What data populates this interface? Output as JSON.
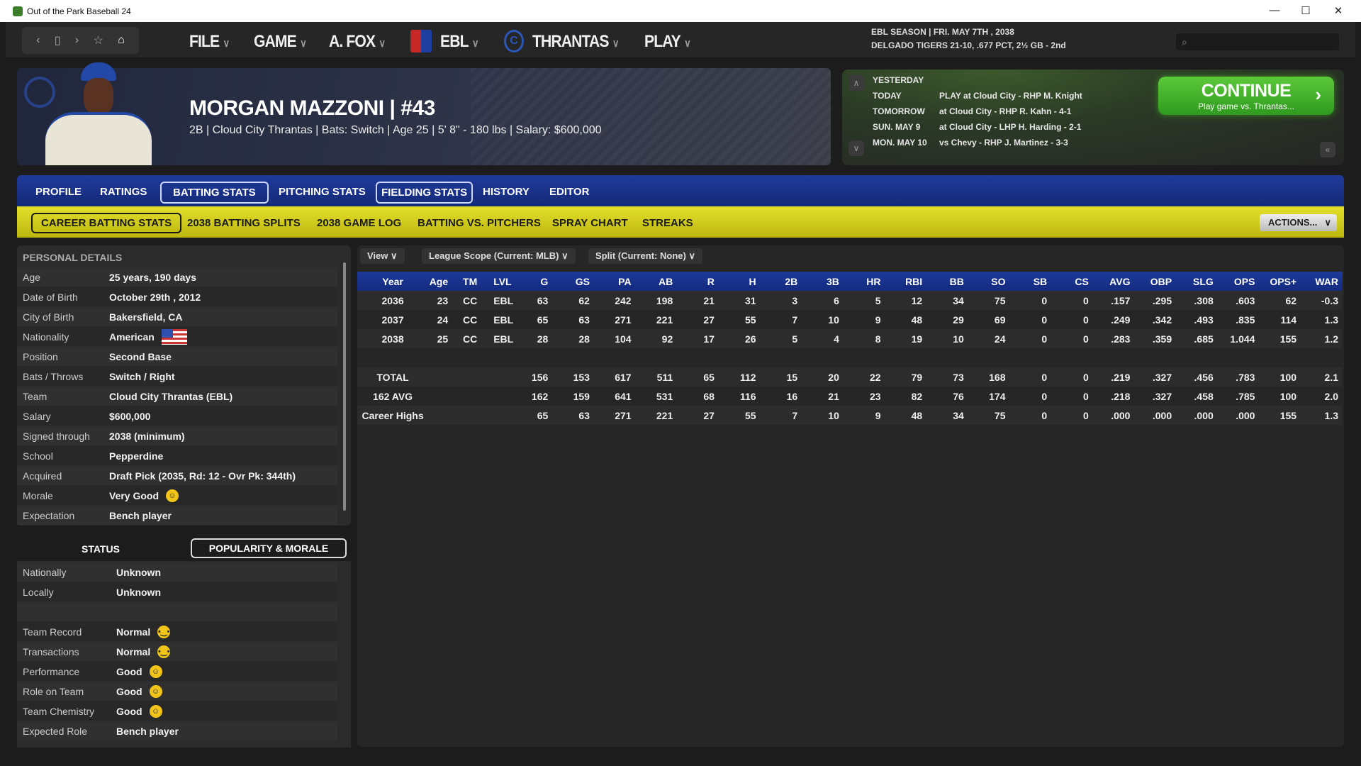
{
  "window": {
    "title": "Out of the Park Baseball 24"
  },
  "menu": {
    "file": "FILE",
    "game": "GAME",
    "manager": "A. FOX",
    "league": "EBL",
    "team": "THRANTAS",
    "play": "PLAY"
  },
  "season": {
    "line1": "EBL SEASON  |  FRI. MAY 7TH , 2038",
    "line2": "DELGADO TIGERS  21-10, .677 PCT, 2½ GB - 2nd"
  },
  "player": {
    "name": "MORGAN MAZZONI  |  #43",
    "subtitle": "2B  |  Cloud City Thrantas  |  Bats: Switch  |  Age 25  |  5' 8\" - 180 lbs  |  Salary: $600,000"
  },
  "schedule": [
    {
      "day": "YESTERDAY",
      "game": ""
    },
    {
      "day": "TODAY",
      "game": "PLAY at Cloud City - RHP M. Knight"
    },
    {
      "day": "TOMORROW",
      "game": "at Cloud City - RHP R. Kahn - 4-1"
    },
    {
      "day": "SUN. MAY 9",
      "game": "at Cloud City - LHP H. Harding - 2-1"
    },
    {
      "day": "MON. MAY 10",
      "game": "vs Chevy - RHP J. Martinez - 3-3"
    }
  ],
  "continue": {
    "label": "CONTINUE",
    "sub": "Play game vs. Thrantas..."
  },
  "tabs": [
    "PROFILE",
    "RATINGS",
    "BATTING STATS",
    "PITCHING STATS",
    "FIELDING STATS",
    "HISTORY",
    "EDITOR"
  ],
  "subtabs": [
    "CAREER BATTING STATS",
    "2038 BATTING SPLITS",
    "2038 GAME LOG",
    "BATTING VS. PITCHERS",
    "SPRAY CHART",
    "STREAKS"
  ],
  "actions_label": "ACTIONS...",
  "personal": {
    "title": "PERSONAL DETAILS",
    "rows": [
      {
        "k": "Age",
        "v": "25 years, 190 days"
      },
      {
        "k": "Date of Birth",
        "v": "October 29th , 2012"
      },
      {
        "k": "City of Birth",
        "v": "Bakersfield, CA"
      },
      {
        "k": "Nationality",
        "v": "American",
        "icon": "us-flag-icon"
      },
      {
        "k": "Position",
        "v": "Second Base"
      },
      {
        "k": "Bats / Throws",
        "v": "Switch / Right"
      },
      {
        "k": "Team",
        "v": "Cloud City Thrantas (EBL)"
      },
      {
        "k": "Salary",
        "v": "$600,000"
      },
      {
        "k": "Signed through",
        "v": "2038 (minimum)"
      },
      {
        "k": "School",
        "v": "Pepperdine"
      },
      {
        "k": "Acquired",
        "v": "Draft Pick (2035, Rd: 12 - Ovr Pk: 344th)"
      },
      {
        "k": "Morale",
        "v": "Very Good",
        "icon": "smiley-icon"
      },
      {
        "k": "Expectation",
        "v": "Bench player"
      }
    ]
  },
  "status": {
    "title": "STATUS",
    "popularity_button": "POPULARITY & MORALE",
    "rows": [
      {
        "k": "Nationally",
        "v": "Unknown"
      },
      {
        "k": "Locally",
        "v": "Unknown"
      },
      {
        "k": "",
        "v": ""
      },
      {
        "k": "Team Record",
        "v": "Normal",
        "icon": "neutral-face-icon"
      },
      {
        "k": "Transactions",
        "v": "Normal",
        "icon": "neutral-face-icon"
      },
      {
        "k": "Performance",
        "v": "Good",
        "icon": "smiley-icon"
      },
      {
        "k": "Role on Team",
        "v": "Good",
        "icon": "smiley-icon"
      },
      {
        "k": "Team Chemistry",
        "v": "Good",
        "icon": "smiley-icon"
      },
      {
        "k": "Expected Role",
        "v": "Bench player"
      }
    ]
  },
  "filters": {
    "view": "View",
    "scope": "League Scope (Current: MLB)",
    "split": "Split (Current: None)"
  },
  "stats": {
    "columns": [
      "Year",
      "Age",
      "TM",
      "LVL",
      "G",
      "GS",
      "PA",
      "AB",
      "R",
      "H",
      "2B",
      "3B",
      "HR",
      "RBI",
      "BB",
      "SO",
      "SB",
      "CS",
      "AVG",
      "OBP",
      "SLG",
      "OPS",
      "OPS+",
      "WAR"
    ],
    "rows": [
      [
        "2036",
        "23",
        "CC",
        "EBL",
        "63",
        "62",
        "242",
        "198",
        "21",
        "31",
        "3",
        "6",
        "5",
        "12",
        "34",
        "75",
        "0",
        "0",
        ".157",
        ".295",
        ".308",
        ".603",
        "62",
        "-0.3"
      ],
      [
        "2037",
        "24",
        "CC",
        "EBL",
        "65",
        "63",
        "271",
        "221",
        "27",
        "55",
        "7",
        "10",
        "9",
        "48",
        "29",
        "69",
        "0",
        "0",
        ".249",
        ".342",
        ".493",
        ".835",
        "114",
        "1.3"
      ],
      [
        "2038",
        "25",
        "CC",
        "EBL",
        "28",
        "28",
        "104",
        "92",
        "17",
        "26",
        "5",
        "4",
        "8",
        "19",
        "10",
        "24",
        "0",
        "0",
        ".283",
        ".359",
        ".685",
        "1.044",
        "155",
        "1.2"
      ],
      [
        "",
        "",
        "",
        "",
        "",
        "",
        "",
        "",
        "",
        "",
        "",
        "",
        "",
        "",
        "",
        "",
        "",
        "",
        "",
        "",
        "",
        "",
        "",
        ""
      ],
      [
        "TOTAL",
        "",
        "",
        "",
        "156",
        "153",
        "617",
        "511",
        "65",
        "112",
        "15",
        "20",
        "22",
        "79",
        "73",
        "168",
        "0",
        "0",
        ".219",
        ".327",
        ".456",
        ".783",
        "100",
        "2.1"
      ],
      [
        "162 AVG",
        "",
        "",
        "",
        "162",
        "159",
        "641",
        "531",
        "68",
        "116",
        "16",
        "21",
        "23",
        "82",
        "76",
        "174",
        "0",
        "0",
        ".218",
        ".327",
        ".458",
        ".785",
        "100",
        "2.0"
      ],
      [
        "Career Highs",
        "",
        "",
        "",
        "65",
        "63",
        "271",
        "221",
        "27",
        "55",
        "7",
        "10",
        "9",
        "48",
        "34",
        "75",
        "0",
        "0",
        ".000",
        ".000",
        ".000",
        ".000",
        "155",
        "1.3"
      ]
    ]
  }
}
